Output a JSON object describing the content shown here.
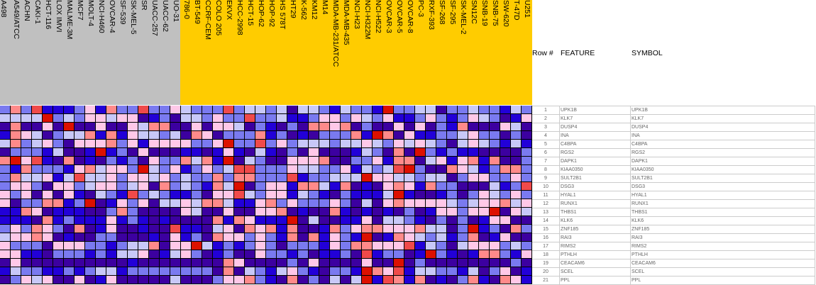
{
  "chart_data": {
    "type": "heatmap",
    "legend": "none",
    "color_codes": {
      "B": "#2200d8",
      "D": "#3c00a0",
      "M": "#7a7af0",
      "L": "#c8c8f8",
      "P": "#ffc8e8",
      "S": "#ff8a8a",
      "r": "#f04a4a",
      "R": "#dc1000"
    },
    "color_scale_order_low_to_high": [
      "B",
      "D",
      "M",
      "L",
      "P",
      "S",
      "r",
      "R"
    ],
    "class_colors": {
      "group1": "#c0c0c0",
      "group2": "#ffcc00"
    },
    "columns_group1": [
      "A498",
      "A549/ATCC",
      "ACHN",
      "CAKI-1",
      "HCT-116",
      "LOX IMVI",
      "MALME-3M",
      "MCF7",
      "MOLT-4",
      "NCI-H460",
      "OVCAR-4",
      "SF-539",
      "SK-MEL-5",
      "SR",
      "UACC-257",
      "UACC-62",
      "UO-31"
    ],
    "columns_group2": [
      "786-0",
      "BT-549",
      "CCRF-CEM",
      "COLO 205",
      "EKVX",
      "HCC-2998",
      "HCT-15",
      "HOP-62",
      "HOP-92",
      "HS 578T",
      "HT29",
      "K-562",
      "KM12",
      "M14",
      "MDA-MB-231/ATCC",
      "MDA-MB-435",
      "NCI-H23",
      "NCI-H322M",
      "NCI-H522",
      "OVCAR-3",
      "OVCAR-5",
      "OVCAR-8",
      "PC-3",
      "RXF-393",
      "SF-268",
      "SF-295",
      "SK-MEL-2",
      "SN12C",
      "SNB-19",
      "SNB-75",
      "SW-620",
      "T-47D",
      "U251"
    ],
    "rows": [
      {
        "num": "1",
        "feature": "UPK1B",
        "symbol": "UPK1B",
        "cells": "MSMrBBBMPBSMMrMMPLMMMrMLLMLDLLMBLMMBRMMLLDMMLMMBLM"
      },
      {
        "num": "2",
        "feature": "KLK7",
        "symbol": "KLK7",
        "cells": "LLLLRMLMPPLPPDBMDLLMPMMrMMLBBMPPMPLMPBBMPMBMPLMDBP"
      },
      {
        "num": "3",
        "feature": "DUSP4",
        "symbol": "DUSP4",
        "cells": "DSDDPDRDDPDDPLSSDDPDPPLDMBDMDSSPSDMDDPDPDMBSDDDPLD"
      },
      {
        "num": "4",
        "feature": "INA",
        "symbol": "INA",
        "cells": "BSPLDMLLSBSBPLLMLDSPDMMMSBMDBDMMMSBRSDPBBMMLPMMDMD"
      },
      {
        "num": "5",
        "feature": "C4BPA",
        "symbol": "C4BPA",
        "cells": "LSMLPMDPPPSMPBPPPPMMPRMMrMPMLLLMLLPLMPLPLMDLPLMBLB"
      },
      {
        "num": "6",
        "feature": "RGS2",
        "symbol": "RGS2",
        "cells": "DMMMBLDDBRBMDPDDDBBDBPBDLBDMDPDDDBLMDSDRMBMBBDDDDM"
      },
      {
        "num": "7",
        "feature": "DAPK1",
        "symbol": "DAPK1",
        "cells": "SRPrBDSDBDMBMDPMMSLSBRDLMDDPPPSDDMMPBSSDLPBPSBSDDM"
      },
      {
        "num": "8",
        "feature": "KIAA0350",
        "symbol": "KIAA0350",
        "cells": "MBSMMMBPSLPPMRLMPBMPMLrrMMMPLLMMPBLMLrRMDDSPLBMSSM"
      },
      {
        "num": "9",
        "feature": "SULT2B1",
        "symbol": "SULT2B1",
        "cells": "MSLLPBLrLLPMPPLPMLMMSMSSMMMrBMMLLLRPPLLMLLDMPPMMPM"
      },
      {
        "num": "10",
        "feature": "DSG3",
        "symbol": "DSG3",
        "cells": "MPPMDPPMLPPMLPDSMLMBSLRDMPPBSSLBSDBDPSPBSMMDDDLBMr"
      },
      {
        "num": "11",
        "feature": "HYAL1",
        "symbol": "HYAL1",
        "cells": "PMPDPDPBDLMBrMLMBBMDPPrLMPPBLMBDMBBBLRBDDBMDMPLMPM"
      },
      {
        "num": "12",
        "feature": "RUNX1",
        "symbol": "RUNX1",
        "cells": "PDMMSSBMRDBPMPDLLPLSSLBBPSMPMMMPMDLDPSPPPPLMLPPSLP"
      },
      {
        "num": "13",
        "feature": "THBS1",
        "symbol": "THBS1",
        "cells": "BBSPDBBBDDMSMDDDDPLDDPDDPPSDBDDSBDBDBDMDBPPMPPRDPL"
      },
      {
        "num": "14",
        "feature": "KLK6",
        "symbol": "KLK6",
        "cells": "BBBDSBMBBBPBMBDBDDDDSBSPBBBRDLDDBBPDLLMBDMDMDBPPDD"
      },
      {
        "num": "15",
        "feature": "ZNF185",
        "symbol": "ZNF185",
        "cells": "MPMSPMDSDBPDDBDDrBBDLPDSPSBSDDBSMPSSPPPSLLDMRBMDSM"
      },
      {
        "num": "16",
        "feature": "RAI3",
        "symbol": "RAI3",
        "cells": "LPPSPDBDDMMDDDBDPBMDSPPMPMBSDSBPMBRDBSPLMLBMSDBPDD"
      },
      {
        "num": "17",
        "feature": "RIMS2",
        "symbol": "RIMS2",
        "cells": "PMMMDPPPMMBMLLSDPPRLBMBMPMDMMMBPMSSPPPrBLMDLPPPMLM"
      },
      {
        "num": "18",
        "feature": "PTHLH",
        "symbol": "PTHLH",
        "cells": "PPBBDMMMBMBLLPDBLPMDBMDDPMMBMDBBMDrBMMDBRMBDBSSMBP"
      },
      {
        "num": "19",
        "feature": "CEACAM6",
        "symbol": "CEACAM6",
        "cells": "DPDDDDDDDDDDBDDDDDDDDSPDDDDMDPDDDDPDDRDMDDDDDDDDMD"
      },
      {
        "num": "20",
        "feature": "SCEL",
        "symbol": "SCEL",
        "cells": "BLMMBBMBMLLBMMMMMMMMDSDLMBLPMBDMMBRSPrBLLMMBLDMPDB"
      },
      {
        "num": "21",
        "feature": "PPL",
        "symbol": "PPL",
        "cells": "DMPLPDDPDBPDDDDDLDDDMPPSMBDSDMDLDLRBrSBSDBDMSBDSPB"
      }
    ]
  },
  "table_header": {
    "row_num": "Row #",
    "feature": "FEATURE",
    "symbol": "SYMBOL"
  }
}
